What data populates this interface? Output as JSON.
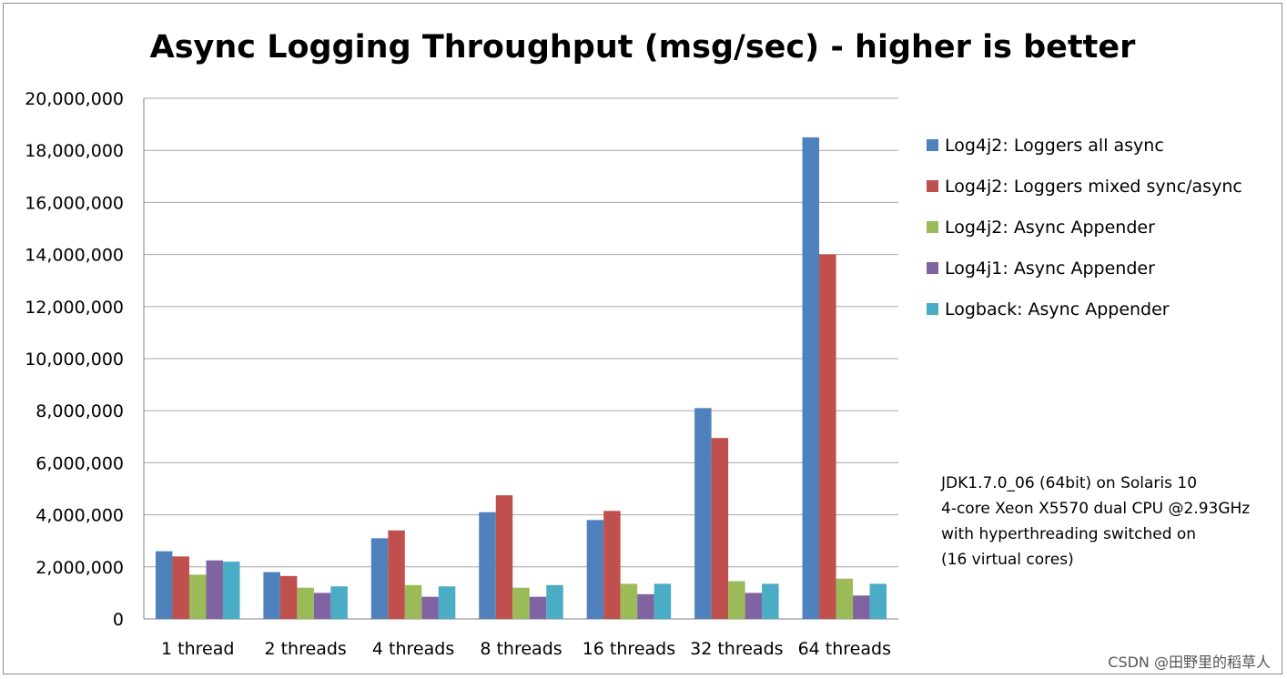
{
  "chart_data": {
    "type": "bar",
    "title": "Async Logging Throughput (msg/sec) - higher is better",
    "xlabel": "",
    "ylabel": "",
    "categories": [
      "1 thread",
      "2 threads",
      "4 threads",
      "8 threads",
      "16 threads",
      "32 threads",
      "64 threads"
    ],
    "ylim": [
      0,
      20000000
    ],
    "yticks": [
      0,
      2000000,
      4000000,
      6000000,
      8000000,
      10000000,
      12000000,
      14000000,
      16000000,
      18000000,
      20000000
    ],
    "ytick_labels": [
      "0",
      "2,000,000",
      "4,000,000",
      "6,000,000",
      "8,000,000",
      "10,000,000",
      "12,000,000",
      "14,000,000",
      "16,000,000",
      "18,000,000",
      "20,000,000"
    ],
    "grid": true,
    "legend_position": "right",
    "series": [
      {
        "name": "Log4j2: Loggers all async",
        "color": "#4f81bd",
        "values": [
          2600000,
          1800000,
          3100000,
          4100000,
          3800000,
          8100000,
          18500000
        ]
      },
      {
        "name": "Log4j2: Loggers mixed sync/async",
        "color": "#c0504d",
        "values": [
          2400000,
          1650000,
          3400000,
          4750000,
          4150000,
          6950000,
          14000000
        ]
      },
      {
        "name": "Log4j2: Async Appender",
        "color": "#9bbb59",
        "values": [
          1700000,
          1200000,
          1300000,
          1200000,
          1350000,
          1450000,
          1550000
        ]
      },
      {
        "name": "Log4j1: Async Appender",
        "color": "#8064a2",
        "values": [
          2250000,
          1000000,
          850000,
          850000,
          950000,
          1000000,
          900000
        ]
      },
      {
        "name": "Logback: Async Appender",
        "color": "#4bacc6",
        "values": [
          2200000,
          1250000,
          1250000,
          1300000,
          1350000,
          1350000,
          1350000
        ]
      }
    ],
    "annotation_lines": [
      "JDK1.7.0_06 (64bit) on Solaris 10",
      "4-core Xeon X5570 dual CPU @2.93GHz",
      "with hyperthreading switched on",
      "(16 virtual cores)"
    ]
  },
  "credit": "CSDN @田野里的稻草人"
}
